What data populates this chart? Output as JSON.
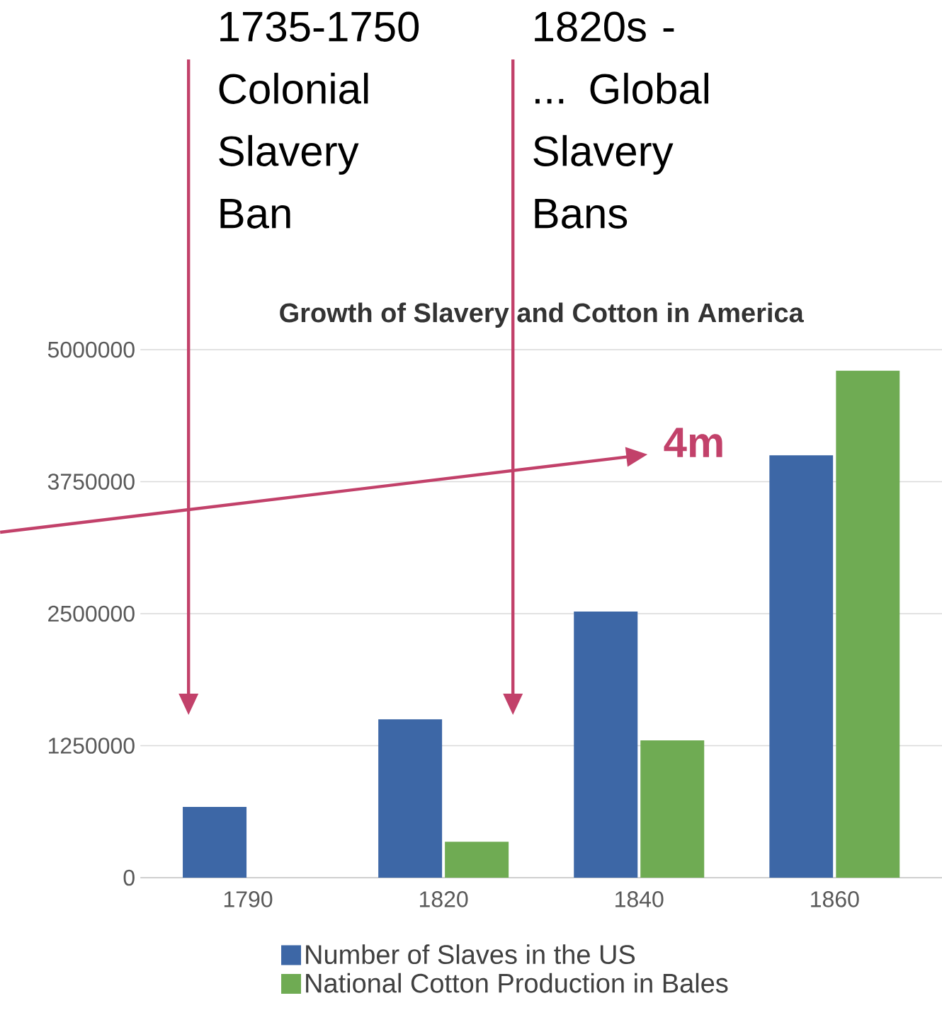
{
  "chart_data": {
    "type": "bar",
    "title": "Growth of Slavery and Cotton in America",
    "categories": [
      "1790",
      "1820",
      "1840",
      "1860"
    ],
    "series": [
      {
        "name": "Number of Slaves in the US",
        "color": "#3d67a6",
        "values": [
          670000,
          1500000,
          2520000,
          4000000
        ]
      },
      {
        "name": "National Cotton Production in Bales",
        "color": "#6fab53",
        "values": [
          null,
          340000,
          1300000,
          4800000
        ]
      }
    ],
    "ylim": [
      0,
      5000000
    ],
    "yticks": [
      0,
      1250000,
      2500000,
      3750000,
      5000000
    ],
    "grid": "y",
    "legend": "bottom",
    "annotations": [
      "1735-1750 Colonial Slavery Ban",
      "1820s - ... Global Slavery Bans",
      "**4m**"
    ]
  }
}
